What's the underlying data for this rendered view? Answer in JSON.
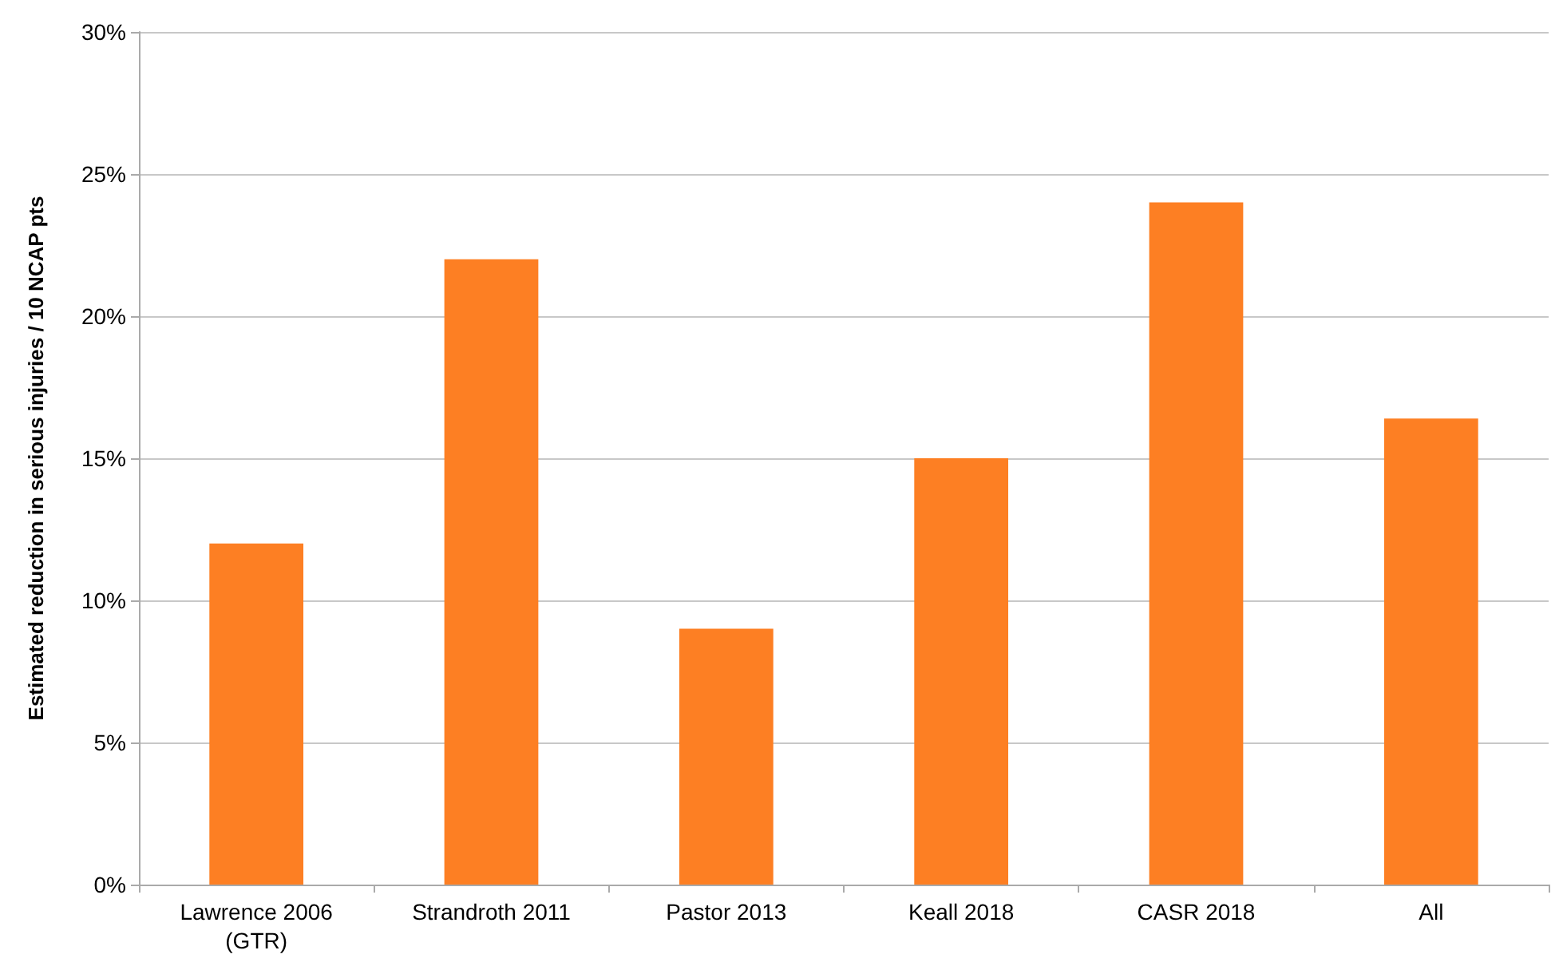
{
  "chart_data": {
    "type": "bar",
    "ylabel": "Estimated reduction in serious injuries / 10 NCAP pts",
    "categories": [
      "Lawrence 2006\n(GTR)",
      "Strandroth 2011",
      "Pastor 2013",
      "Keall 2018",
      "CASR 2018",
      "All"
    ],
    "values": [
      12,
      22,
      9,
      15,
      24,
      16.4
    ],
    "color": "#fd7f23",
    "ylim": [
      0,
      30
    ],
    "yticks": [
      {
        "value": 0,
        "label": "0%"
      },
      {
        "value": 5,
        "label": "5%"
      },
      {
        "value": 10,
        "label": "10%"
      },
      {
        "value": 15,
        "label": "15%"
      },
      {
        "value": 20,
        "label": "20%"
      },
      {
        "value": 25,
        "label": "25%"
      },
      {
        "value": 30,
        "label": "30%"
      }
    ],
    "grid": "y"
  }
}
